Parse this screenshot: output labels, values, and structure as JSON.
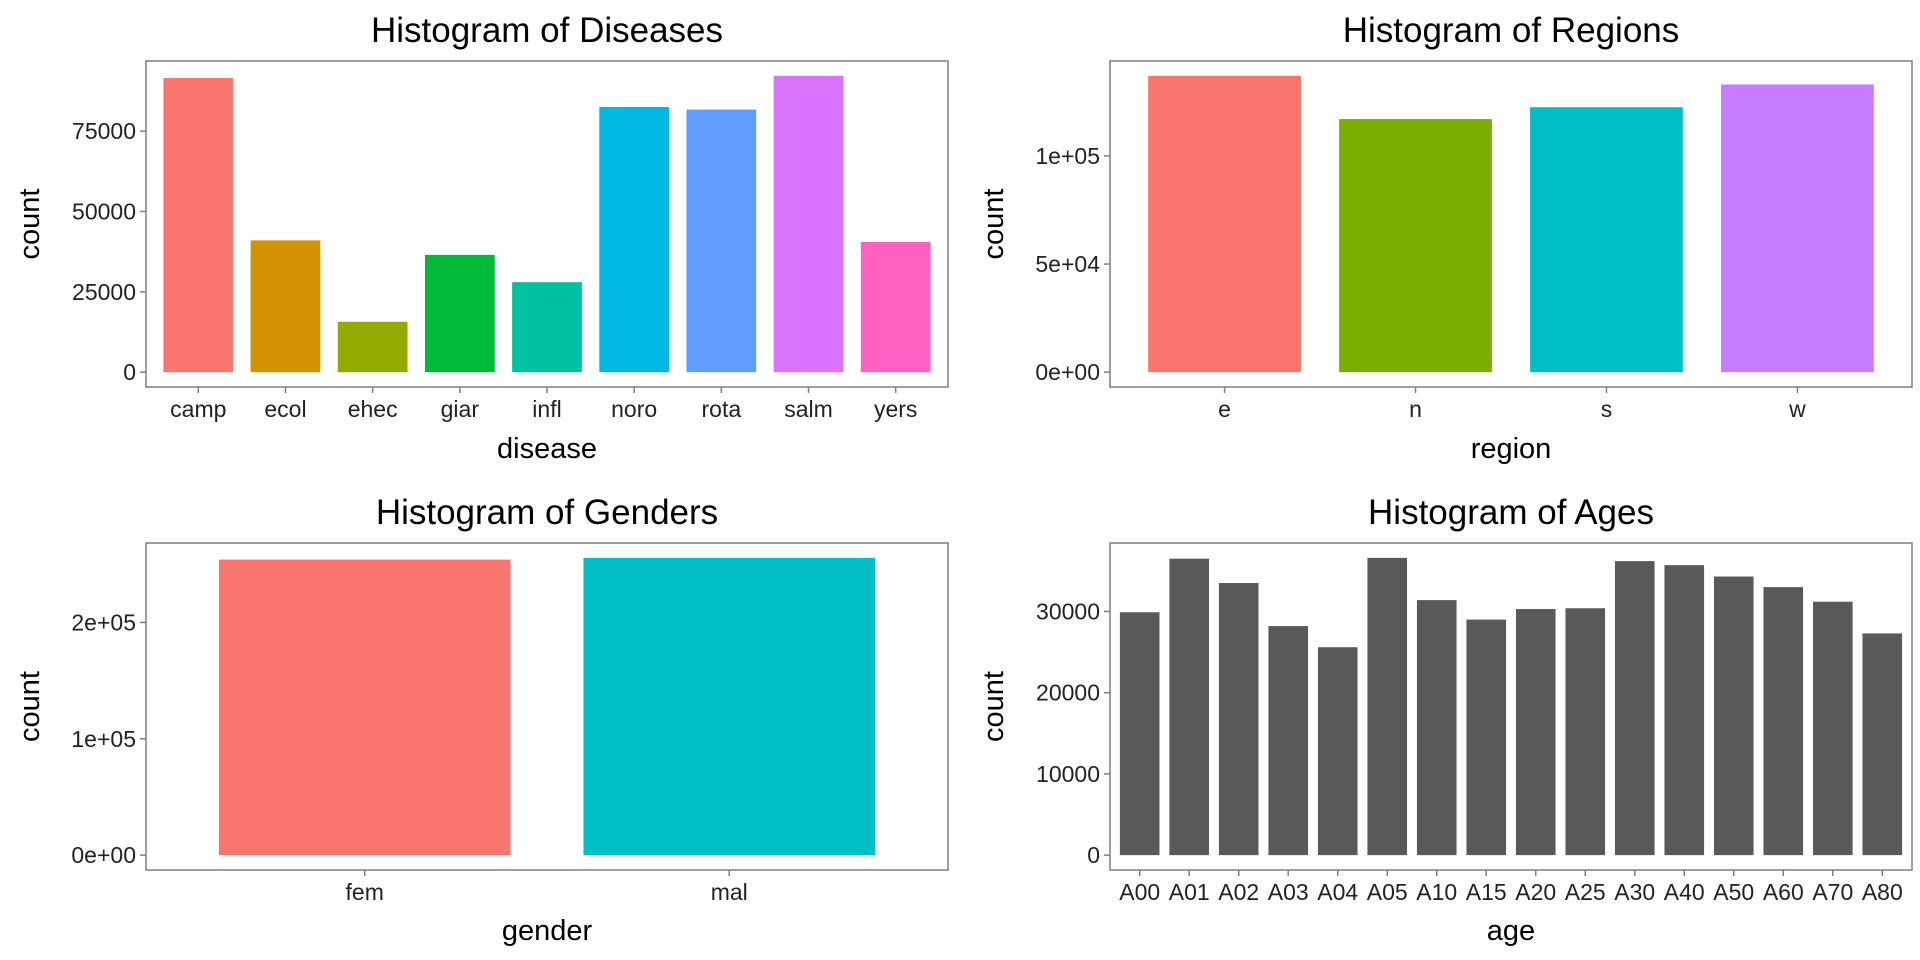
{
  "chart_data": [
    {
      "id": "diseases",
      "type": "bar",
      "title": "Histogram of Diseases",
      "xlabel": "disease",
      "ylabel": "count",
      "categories": [
        "camp",
        "ecol",
        "ehec",
        "giar",
        "infl",
        "noro",
        "rota",
        "salm",
        "yers"
      ],
      "values": [
        91500,
        41000,
        15700,
        36500,
        28000,
        82500,
        81700,
        92200,
        40500
      ],
      "colors": [
        "#F8766D",
        "#D39200",
        "#93AA00",
        "#00BA38",
        "#00C19F",
        "#00B9E3",
        "#619CFF",
        "#DB72FB",
        "#FF61C3"
      ],
      "ylim": [
        -4600,
        96800
      ],
      "yticks": [
        0,
        25000,
        50000,
        75000
      ],
      "ytick_labels": [
        "0",
        "25000",
        "50000",
        "75000"
      ],
      "grid": false
    },
    {
      "id": "regions",
      "type": "bar",
      "title": "Histogram of Regions",
      "xlabel": "region",
      "ylabel": "count",
      "categories": [
        "e",
        "n",
        "s",
        "w"
      ],
      "values": [
        137000,
        117000,
        122500,
        133000
      ],
      "colors": [
        "#F8766D",
        "#7CAE00",
        "#00BFC4",
        "#C77CFF"
      ],
      "ylim": [
        -6850,
        143850
      ],
      "yticks": [
        0,
        50000,
        100000
      ],
      "ytick_labels": [
        "0e+00",
        "5e+04",
        "1e+05"
      ],
      "grid": false
    },
    {
      "id": "genders",
      "type": "bar",
      "title": "Histogram of Genders",
      "xlabel": "gender",
      "ylabel": "count",
      "categories": [
        "fem",
        "mal"
      ],
      "values": [
        254000,
        255500
      ],
      "colors": [
        "#F8766D",
        "#00BFC4"
      ],
      "ylim": [
        -12775,
        268275
      ],
      "yticks": [
        0,
        100000,
        200000
      ],
      "ytick_labels": [
        "0e+00",
        "1e+05",
        "2e+05"
      ],
      "grid": false
    },
    {
      "id": "ages",
      "type": "bar",
      "title": "Histogram of Ages",
      "xlabel": "age",
      "ylabel": "count",
      "categories": [
        "A00",
        "A01",
        "A02",
        "A03",
        "A04",
        "A05",
        "A10",
        "A15",
        "A20",
        "A25",
        "A30",
        "A40",
        "A50",
        "A60",
        "A70",
        "A80"
      ],
      "values": [
        29900,
        36500,
        33500,
        28200,
        25600,
        36600,
        31400,
        29000,
        30300,
        30400,
        36200,
        35700,
        34300,
        33000,
        31200,
        27300
      ],
      "colors": [
        "#595959"
      ],
      "ylim": [
        -1830,
        38430
      ],
      "yticks": [
        0,
        10000,
        20000,
        30000
      ],
      "ytick_labels": [
        "0",
        "10000",
        "20000",
        "30000"
      ],
      "grid": false
    }
  ]
}
